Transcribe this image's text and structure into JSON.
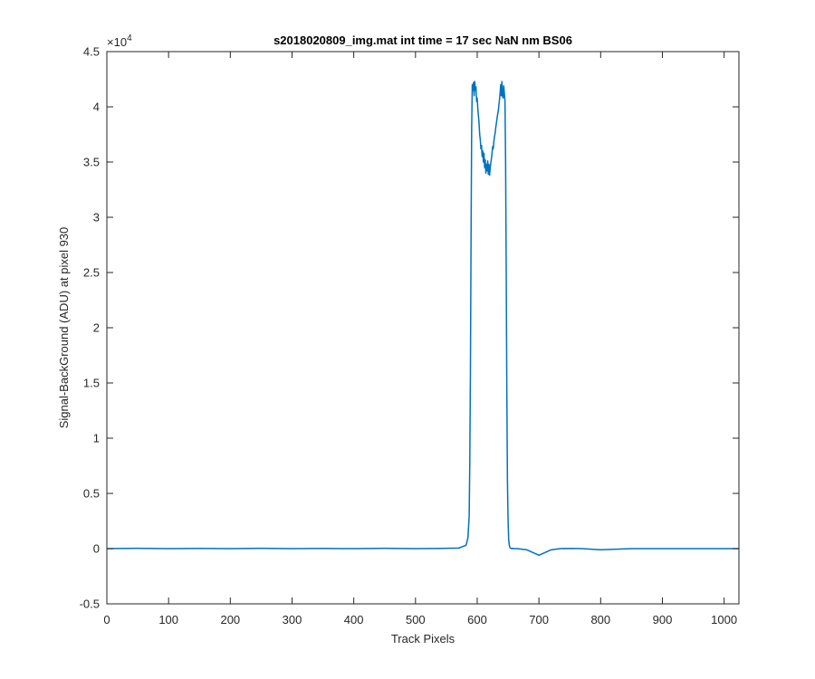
{
  "chart_data": {
    "type": "line",
    "title": "s2018020809_img.mat int time = 17 sec  NaN nm BS06",
    "xlabel": "Track Pixels",
    "ylabel": "Signal-BackGround (ADU) at pixel 930",
    "xlim": [
      0,
      1024
    ],
    "ylim": [
      -5000,
      45000
    ],
    "xticks": [
      0,
      100,
      200,
      300,
      400,
      500,
      600,
      700,
      800,
      900,
      1000
    ],
    "yticks": [
      -0.5,
      0,
      0.5,
      1,
      1.5,
      2,
      2.5,
      3,
      3.5,
      4,
      4.5
    ],
    "y_exponent_base": "×10",
    "y_exponent_power": "4",
    "grid": false,
    "line_color": "#0072bd",
    "series": [
      {
        "x": [
          0,
          50,
          100,
          150,
          200,
          250,
          300,
          350,
          400,
          450,
          500,
          540,
          570,
          582,
          585,
          587,
          588,
          589,
          590,
          591,
          592,
          593,
          594,
          595,
          596,
          597,
          598,
          599,
          600,
          601,
          602,
          603,
          604,
          605,
          606,
          607,
          608,
          609,
          610,
          611,
          612,
          613,
          614,
          615,
          616,
          617,
          618,
          619,
          620,
          621,
          622,
          623,
          624,
          625,
          626,
          627,
          628,
          629,
          630,
          631,
          632,
          633,
          634,
          635,
          636,
          637,
          638,
          639,
          640,
          641,
          642,
          643,
          644,
          645,
          646,
          647,
          648,
          649,
          650,
          651,
          652,
          653,
          654,
          655,
          656,
          657,
          658,
          660,
          665,
          680,
          700,
          720,
          735,
          740,
          741,
          742,
          743,
          744,
          746,
          750,
          770,
          800,
          850,
          900,
          950,
          1000,
          1010,
          1015,
          1020,
          1024
        ],
        "y": [
          0,
          30,
          0,
          20,
          0,
          30,
          0,
          20,
          0,
          30,
          0,
          20,
          50,
          300,
          1000,
          3000,
          8000,
          16000,
          28000,
          38000,
          42000,
          41500,
          42200,
          41000,
          42300,
          41500,
          41800,
          40500,
          40800,
          39800,
          39200,
          38500,
          37500,
          37000,
          36200,
          36500,
          35500,
          36000,
          35000,
          35800,
          34500,
          35200,
          34000,
          34800,
          34200,
          35100,
          33900,
          34800,
          33800,
          34400,
          34900,
          35300,
          35800,
          36400,
          36200,
          36900,
          37300,
          37600,
          38100,
          38500,
          38900,
          39300,
          39600,
          40100,
          40600,
          41200,
          42000,
          41000,
          42300,
          41000,
          40800,
          41900,
          41200,
          40500,
          35000,
          25000,
          14000,
          6000,
          2500,
          800,
          300,
          100,
          50,
          0,
          20,
          0,
          30,
          0,
          0,
          -100,
          -600,
          -100,
          0,
          20,
          0,
          0,
          0,
          30,
          0,
          20,
          0,
          -100,
          0,
          0,
          0,
          0,
          0,
          0,
          0,
          0
        ]
      }
    ]
  }
}
